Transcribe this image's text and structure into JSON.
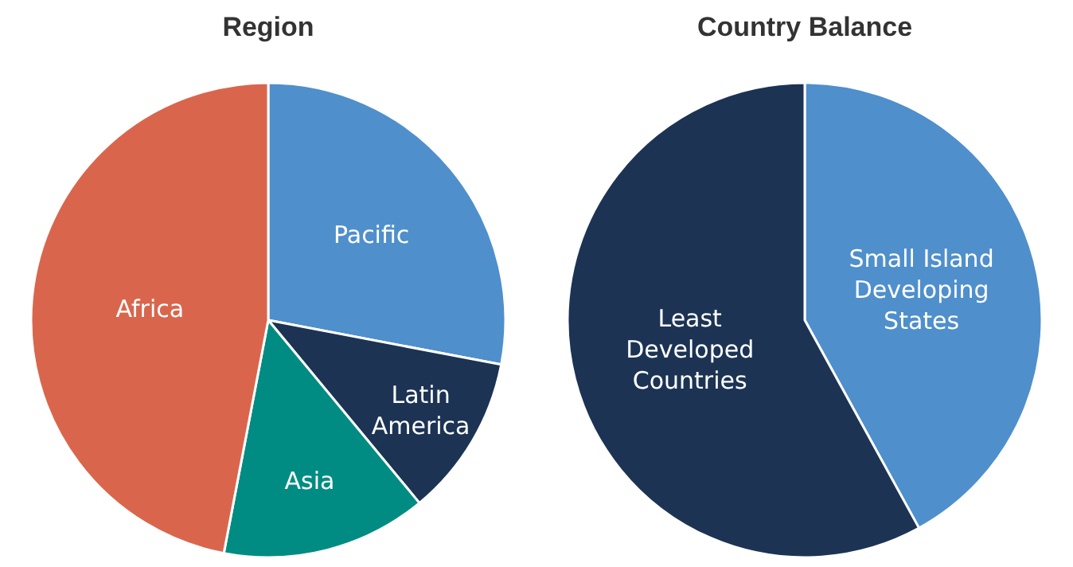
{
  "chart_data": [
    {
      "type": "pie",
      "title": "Region",
      "categories": [
        "Pacific",
        "Latin America",
        "Asia",
        "Africa"
      ],
      "values": [
        28,
        11,
        14,
        47
      ],
      "colors": [
        "#4f8fcc",
        "#1c3354",
        "#008c82",
        "#d9664c"
      ],
      "legend": false
    },
    {
      "type": "pie",
      "title": "Country Balance",
      "categories": [
        "Small Island Developing States",
        "Least Developed Countries"
      ],
      "values": [
        42,
        58
      ],
      "colors": [
        "#4f8fcc",
        "#1c3354"
      ],
      "legend": false
    }
  ]
}
